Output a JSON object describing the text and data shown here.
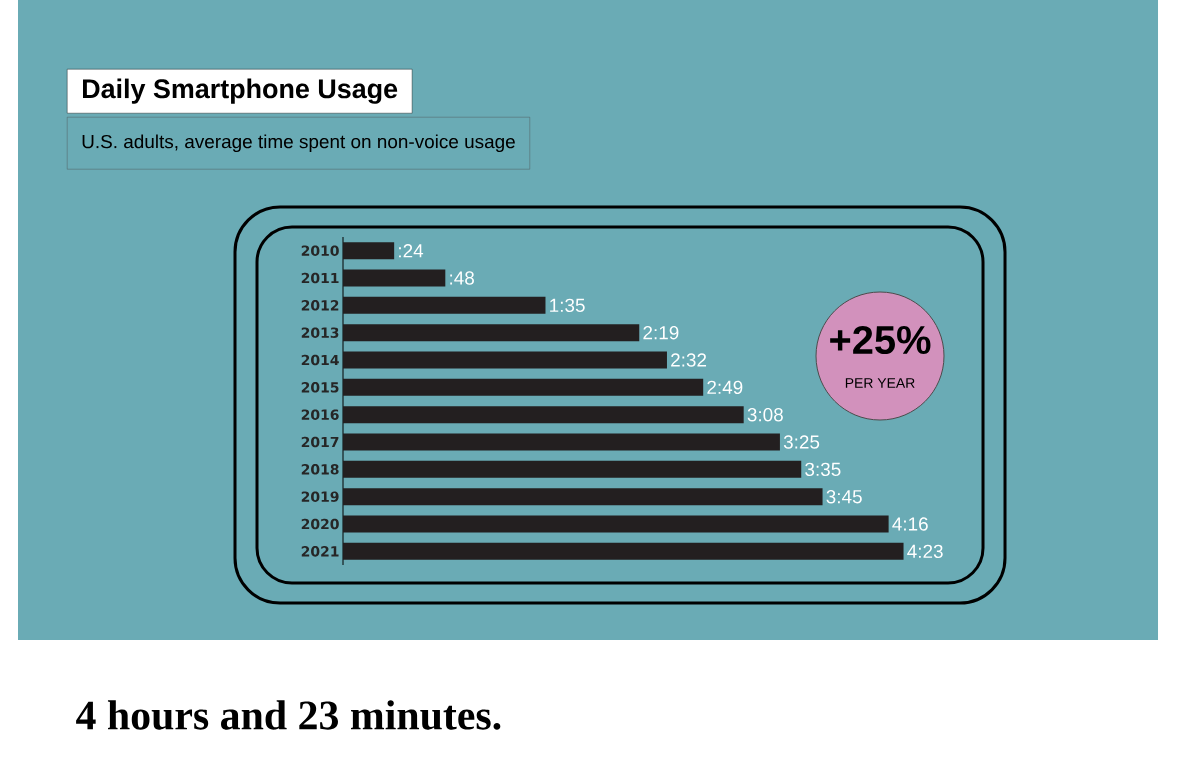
{
  "chart_data": {
    "type": "bar",
    "orientation": "horizontal",
    "title": "Daily Smartphone Usage",
    "subtitle": "U.S. adults, average time spent on non-voice usage",
    "categories": [
      "2010",
      "2011",
      "2012",
      "2013",
      "2014",
      "2015",
      "2016",
      "2017",
      "2018",
      "2019",
      "2020",
      "2021"
    ],
    "values": [
      24,
      48,
      95,
      139,
      152,
      169,
      188,
      205,
      215,
      225,
      256,
      263
    ],
    "value_labels": [
      ":24",
      ":48",
      "1:35",
      "2:19",
      "2:32",
      "2:49",
      "3:08",
      "3:25",
      "3:35",
      "3:45",
      "4:16",
      "4:23"
    ],
    "color": "#231f20",
    "tick_labels": "y",
    "annotations": [
      "+25%",
      "PER YEAR",
      "4 hours and 23 minutes."
    ]
  }
}
